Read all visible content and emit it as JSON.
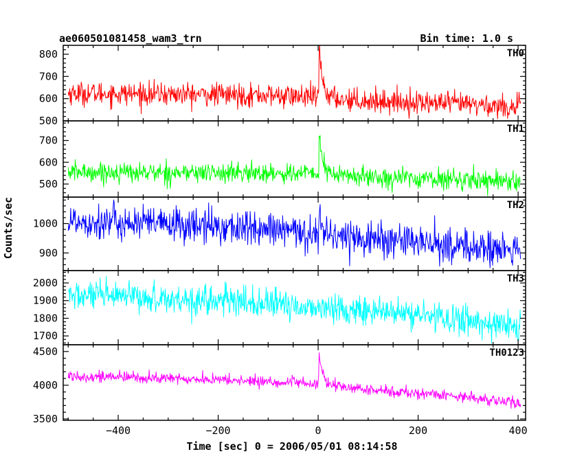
{
  "header": {
    "title": "ae060501081458_wam3_trn",
    "bin_time": "Bin time: 1.0 s"
  },
  "chart_data": {
    "type": "line",
    "xlabel": "Time [sec] 0 = 2006/05/01 08:14:58",
    "ylabel": "Counts/sec",
    "xlim": [
      -510,
      415
    ],
    "xticks": [
      -400,
      -200,
      0,
      200,
      400
    ],
    "grid": false,
    "panels": [
      {
        "name": "TH0",
        "color": "#ff0000",
        "ylim": [
          500,
          840
        ],
        "yticks": [
          500,
          600,
          700,
          800
        ],
        "baseline": [
          [
            -500,
            625
          ],
          [
            -100,
            615
          ],
          [
            0,
            605
          ],
          [
            100,
            590
          ],
          [
            300,
            575
          ],
          [
            405,
            560
          ]
        ],
        "noise": 34,
        "burst": {
          "t": 2,
          "peak": 830,
          "decay": 7
        },
        "values": [
          [
            -500,
            640
          ],
          [
            -400,
            628
          ],
          [
            -300,
            630
          ],
          [
            -200,
            622
          ],
          [
            -100,
            618
          ],
          [
            0,
            610
          ],
          [
            2,
            830
          ],
          [
            20,
            610
          ],
          [
            100,
            595
          ],
          [
            200,
            588
          ],
          [
            300,
            580
          ],
          [
            405,
            545
          ]
        ]
      },
      {
        "name": "TH1",
        "color": "#00ff00",
        "ylim": [
          440,
          790
        ],
        "yticks": [
          500,
          600,
          700
        ],
        "baseline": [
          [
            -500,
            555
          ],
          [
            -100,
            550
          ],
          [
            0,
            548
          ],
          [
            100,
            532
          ],
          [
            300,
            520
          ],
          [
            405,
            515
          ]
        ],
        "noise": 30,
        "burst": {
          "t": 2,
          "peak": 745,
          "decay": 6
        },
        "values": [
          [
            -500,
            560
          ],
          [
            -400,
            555
          ],
          [
            -300,
            552
          ],
          [
            -200,
            550
          ],
          [
            -100,
            548
          ],
          [
            0,
            552
          ],
          [
            2,
            745
          ],
          [
            20,
            560
          ],
          [
            100,
            540
          ],
          [
            200,
            530
          ],
          [
            300,
            525
          ],
          [
            405,
            520
          ]
        ]
      },
      {
        "name": "TH2",
        "color": "#0000ff",
        "ylim": [
          840,
          1090
        ],
        "yticks": [
          900,
          1000
        ],
        "baseline": [
          [
            -500,
            1010
          ],
          [
            -200,
            990
          ],
          [
            0,
            965
          ],
          [
            200,
            935
          ],
          [
            405,
            905
          ]
        ],
        "noise": 40,
        "burst": {
          "t": 2,
          "peak": 1075,
          "decay": 4
        },
        "values": [
          [
            -500,
            1010
          ],
          [
            -400,
            1005
          ],
          [
            -300,
            1000
          ],
          [
            -200,
            990
          ],
          [
            -100,
            975
          ],
          [
            0,
            965
          ],
          [
            2,
            1075
          ],
          [
            100,
            955
          ],
          [
            200,
            935
          ],
          [
            300,
            925
          ],
          [
            405,
            895
          ]
        ]
      },
      {
        "name": "TH3",
        "color": "#00ffff",
        "ylim": [
          1650,
          2070
        ],
        "yticks": [
          1700,
          1800,
          1900,
          2000
        ],
        "baseline": [
          [
            -500,
            1930
          ],
          [
            -200,
            1900
          ],
          [
            0,
            1860
          ],
          [
            200,
            1820
          ],
          [
            405,
            1750
          ]
        ],
        "noise": 55,
        "burst": null,
        "values": [
          [
            -500,
            1930
          ],
          [
            -400,
            1925
          ],
          [
            -300,
            1910
          ],
          [
            -200,
            1900
          ],
          [
            -100,
            1880
          ],
          [
            0,
            1860
          ],
          [
            100,
            1845
          ],
          [
            200,
            1820
          ],
          [
            300,
            1790
          ],
          [
            405,
            1740
          ]
        ]
      },
      {
        "name": "TH0123",
        "color": "#ff00ff",
        "ylim": [
          3480,
          4600
        ],
        "yticks": [
          3500,
          4000,
          4500
        ],
        "baseline": [
          [
            -500,
            4140
          ],
          [
            -200,
            4080
          ],
          [
            0,
            4020
          ],
          [
            100,
            3930
          ],
          [
            300,
            3830
          ],
          [
            405,
            3720
          ]
        ],
        "noise": 55,
        "burst": {
          "t": 2,
          "peak": 4520,
          "decay": 6
        },
        "values": [
          [
            -500,
            4140
          ],
          [
            -400,
            4120
          ],
          [
            -300,
            4100
          ],
          [
            -200,
            4080
          ],
          [
            -100,
            4040
          ],
          [
            0,
            4020
          ],
          [
            2,
            4520
          ],
          [
            20,
            4050
          ],
          [
            100,
            3930
          ],
          [
            200,
            3870
          ],
          [
            300,
            3830
          ],
          [
            405,
            3700
          ]
        ]
      }
    ]
  }
}
